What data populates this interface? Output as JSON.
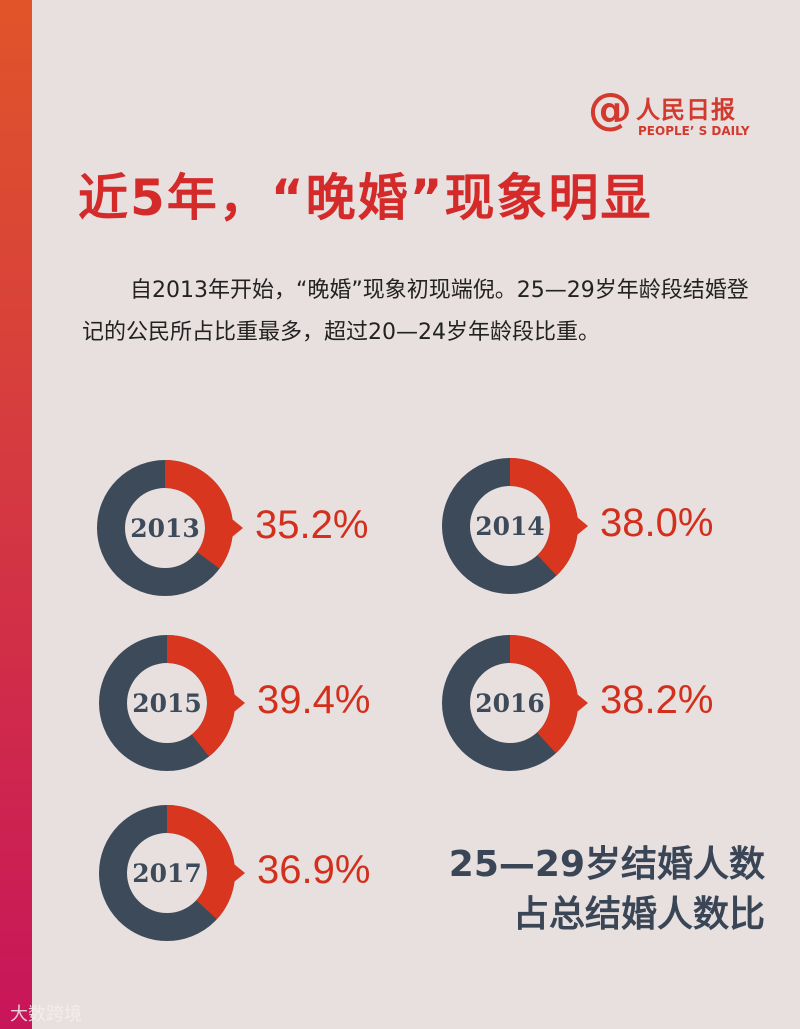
{
  "logo": {
    "at": "@",
    "cn": "人民日报",
    "en": "PEOPLE’ S DAILY"
  },
  "title": "近5年，“晚婚”现象明显",
  "intro": "自2013年开始，“晚婚”现象初现端倪。25—29岁年龄段结婚登记的公民所占比重最多，超过20—24岁年龄段比重。",
  "chart_data": {
    "type": "pie",
    "categories": [
      "2013",
      "2014",
      "2015",
      "2016",
      "2017"
    ],
    "values": [
      35.2,
      38.0,
      39.4,
      38.2,
      36.9
    ],
    "labels": [
      "35.2%",
      "38.0%",
      "39.4%",
      "38.2%",
      "36.9%"
    ],
    "title": "25—29岁结婚人数占总结婚人数比",
    "colors": {
      "share": "#d8361e",
      "rest": "#3d4a5a"
    }
  },
  "caption": {
    "line1": "25—29岁结婚人数",
    "line2": "占总结婚人数比"
  },
  "watermark": "大数跨境"
}
